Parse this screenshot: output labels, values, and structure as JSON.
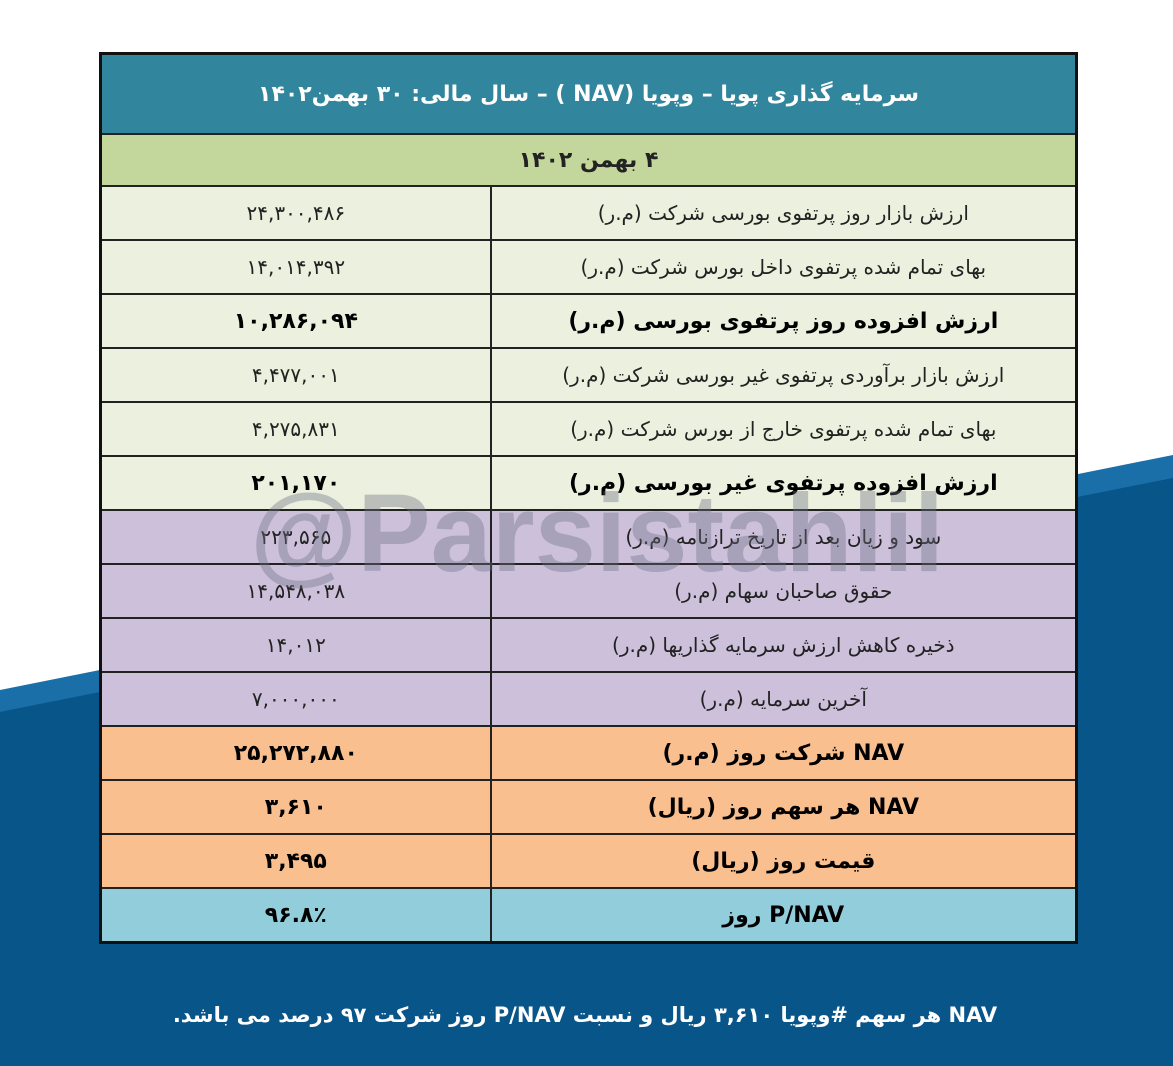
{
  "title": "سرمایه گذاری پویا – وپویا (NAV ) – سال مالی: ۳۰ بهمن۱۴۰۲",
  "date": "۴ بهمن ۱۴۰۲",
  "rows": [
    {
      "label": "ارزش بازار روز پرتفوی بورسی شرکت (م.ر)",
      "value": "۲۴,۳۰۰,۴۸۶"
    },
    {
      "label": "بهای تمام شده پرتفوی داخل بورس شرکت (م.ر)",
      "value": "۱۴,۰۱۴,۳۹۲"
    },
    {
      "label": "ارزش افزوده روز پرتفوی بورسی (م.ر)",
      "value": "۱۰,۲۸۶,۰۹۴"
    },
    {
      "label": "ارزش بازار برآوردی پرتفوی غیر بورسی شرکت (م.ر)",
      "value": "۴,۴۷۷,۰۰۱"
    },
    {
      "label": "بهای تمام شده پرتفوی خارج از بورس شرکت (م.ر)",
      "value": "۴,۲۷۵,۸۳۱"
    },
    {
      "label": "ارزش افزوده پرتفوی غیر بورسی (م.ر)",
      "value": "۲۰۱,۱۷۰"
    },
    {
      "label": "سود و زیان بعد از تاریخ ترازنامه (م.ر)",
      "value": "۲۲۳,۵۶۵"
    },
    {
      "label": "حقوق صاحبان سهام (م.ر)",
      "value": "۱۴,۵۴۸,۰۳۸"
    },
    {
      "label": "ذخیره کاهش ارزش سرمایه گذاریها (م.ر)",
      "value": "۱۴,۰۱۲"
    },
    {
      "label": "آخرین سرمایه (م.ر)",
      "value": "۷,۰۰۰,۰۰۰"
    },
    {
      "label": "NAV  شرکت روز (م.ر)",
      "value": "۲۵,۲۷۲,۸۸۰"
    },
    {
      "label": "NAV  هر سهم روز (ریال)",
      "value": "۳,۶۱۰"
    },
    {
      "label": "قیمت روز (ریال)",
      "value": "۳,۴۹۵"
    },
    {
      "label": "P/NAV روز",
      "value": "۹۶.۸٪"
    }
  ],
  "footer": "NAV هر سهم #وپویا ۳,۶۱۰ ریال و نسبت P/NAV روز شرکت ۹۷ درصد می باشد.",
  "watermark": "@Parsistahlil",
  "colors": {
    "header": "#31859c",
    "date_row": "#c3d69b",
    "green_rows": "#ebf1de",
    "purple_rows": "#ccc0da",
    "orange_rows": "#fabf8f",
    "blue_row": "#92cddc",
    "background_band": "#08558a"
  }
}
